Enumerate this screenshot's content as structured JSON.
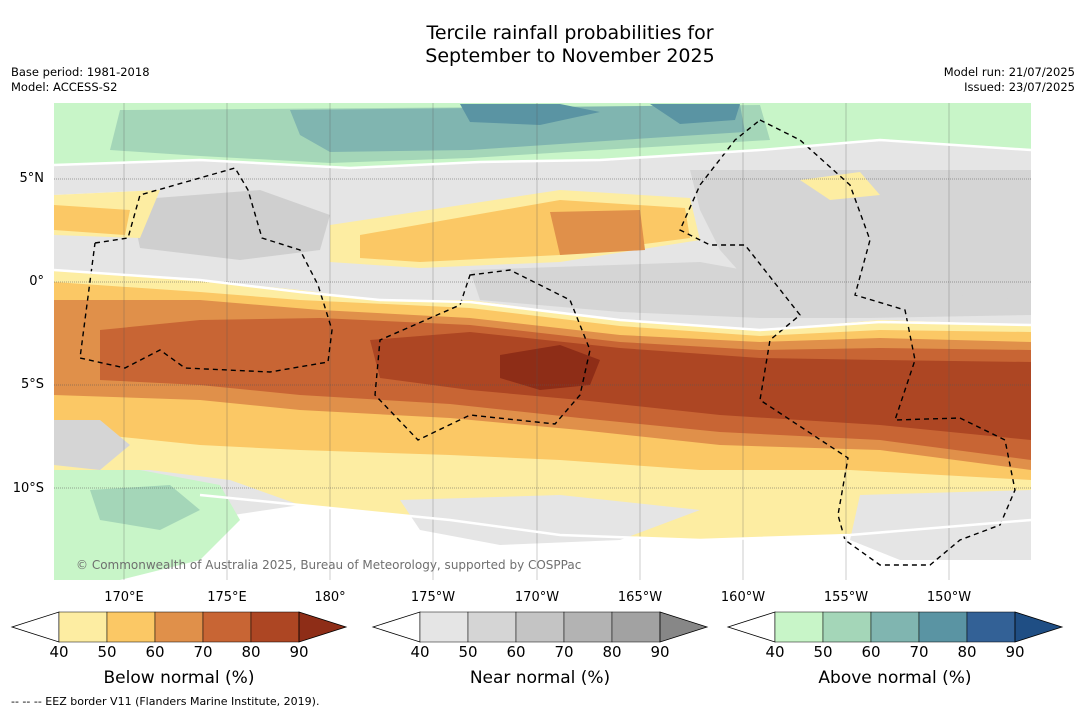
{
  "title_line1": "Tercile rainfall probabilities for",
  "title_line2": "September to November 2025",
  "meta_left": {
    "base_period": "Base period: 1981-2018",
    "model": "Model: ACCESS-S2"
  },
  "meta_right": {
    "model_run": "Model run: 21/07/2025",
    "issued": "Issued: 23/07/2025"
  },
  "lat_labels": [
    "5°N",
    "0°",
    "5°S",
    "10°S"
  ],
  "lon_labels": [
    "170°E",
    "175°E",
    "180°",
    "175°W",
    "170°W",
    "165°W",
    "160°W",
    "155°W",
    "150°W"
  ],
  "copyright": "© Commonwealth of Australia 2025, Bureau of Meteorology, supported by COSPPac",
  "colorbars": [
    {
      "title": "Below normal (%)",
      "ticks": [
        "40",
        "50",
        "60",
        "70",
        "80",
        "90"
      ],
      "colors": [
        "#fdeda2",
        "#fbc865",
        "#e0904a",
        "#c86534",
        "#ad4623",
        "#8e2d17"
      ]
    },
    {
      "title": "Near normal (%)",
      "ticks": [
        "40",
        "50",
        "60",
        "70",
        "80",
        "90"
      ],
      "colors": [
        "#e5e5e5",
        "#d5d5d5",
        "#c4c4c4",
        "#b3b3b3",
        "#a2a2a2",
        "#878787"
      ]
    },
    {
      "title": "Above normal (%)",
      "ticks": [
        "40",
        "50",
        "60",
        "70",
        "80",
        "90"
      ],
      "colors": [
        "#c8f5c8",
        "#a4d6b8",
        "#80b5b0",
        "#5a94a3",
        "#336196",
        "#1f4e84"
      ]
    }
  ],
  "eez_note": "--  --  -- EEZ border V11 (Flanders Marine Institute, 2019)."
}
